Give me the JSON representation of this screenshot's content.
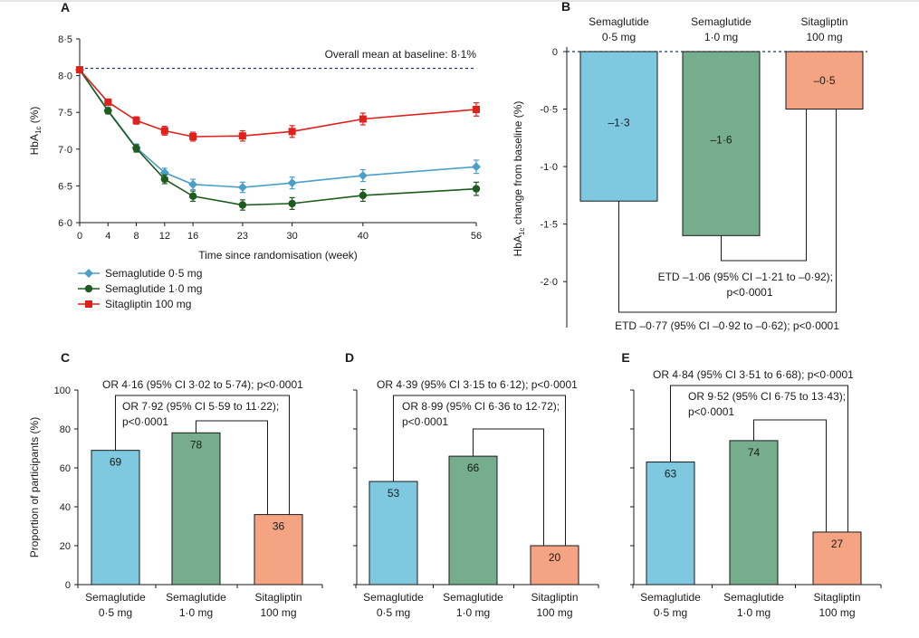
{
  "colors": {
    "sema05": "#7ec8e0",
    "sema10": "#76ad8c",
    "sita": "#f4a383",
    "line_sema05": "#4a9fc9",
    "line_sema10": "#1f5a1f",
    "line_sita": "#e0201b",
    "axis": "#1a1a1a",
    "baseline": "#1f3a6b"
  },
  "chart_data": [
    {
      "panel": "A",
      "type": "line",
      "ylabel_main": "HbA",
      "ylabel_sub": "1c",
      "ylabel_unit": " (%)",
      "xlabel": "Time since randomisation (week)",
      "annotation": "Overall mean at baseline: 8·1%",
      "baseline": 8.1,
      "x": [
        0,
        4,
        8,
        12,
        16,
        23,
        30,
        40,
        56
      ],
      "x_tick_labels": [
        "0",
        "4",
        "8",
        "12",
        "16",
        "23",
        "30",
        "40",
        "56"
      ],
      "ylim": [
        6.0,
        8.5
      ],
      "y_tick_labels": [
        "6·0",
        "6·5",
        "7·0",
        "7·5",
        "8·0",
        "8·5"
      ],
      "series": [
        {
          "name": "Semaglutide 0·5 mg",
          "color": "line_sema05",
          "marker": "diamond",
          "values": [
            8.08,
            7.53,
            7.02,
            6.68,
            6.52,
            6.48,
            6.54,
            6.64,
            6.76
          ],
          "err": [
            0.03,
            0.04,
            0.05,
            0.06,
            0.07,
            0.07,
            0.08,
            0.08,
            0.09
          ]
        },
        {
          "name": "Semaglutide 1·0 mg",
          "color": "line_sema10",
          "marker": "circle",
          "values": [
            8.08,
            7.52,
            7.01,
            6.59,
            6.36,
            6.24,
            6.26,
            6.37,
            6.46
          ],
          "err": [
            0.03,
            0.04,
            0.05,
            0.06,
            0.07,
            0.07,
            0.08,
            0.08,
            0.09
          ]
        },
        {
          "name": "Sitagliptin 100 mg",
          "color": "line_sita",
          "marker": "square",
          "values": [
            8.08,
            7.64,
            7.39,
            7.25,
            7.17,
            7.18,
            7.24,
            7.41,
            7.54
          ],
          "err": [
            0.03,
            0.04,
            0.05,
            0.06,
            0.06,
            0.07,
            0.08,
            0.08,
            0.09
          ]
        }
      ]
    },
    {
      "panel": "B",
      "type": "bar",
      "ylabel_main": "HbA",
      "ylabel_sub": "1c",
      "ylabel_rest": " change from baseline (%)",
      "categories": [
        [
          "Semaglutide",
          "0·5 mg"
        ],
        [
          "Semaglutide",
          "1·0 mg"
        ],
        [
          "Sitagliptin",
          "100 mg"
        ]
      ],
      "values": [
        -1.3,
        -1.6,
        -0.5
      ],
      "bar_labels": [
        "–1·3",
        "–1·6",
        "–0·5"
      ],
      "ylim": [
        -2.4,
        0
      ],
      "y_tick_labels": [
        "0",
        "-0·5",
        "-1·0",
        "-1·5",
        "-2·0"
      ],
      "etd_lines": [
        [
          "ETD –1·06 (95% CI –1·21 to –0·92);",
          "p<0·0001"
        ],
        [
          "ETD –0·77 (95% CI –0·92 to –0·62); p<0·0001"
        ]
      ]
    },
    {
      "panel": "C",
      "type": "bar",
      "ylabel": "Proportion of participants (%)",
      "categories": [
        [
          "Semaglutide",
          "0·5 mg"
        ],
        [
          "Semaglutide",
          "1·0 mg"
        ],
        [
          "Sitagliptin",
          "100 mg"
        ]
      ],
      "values": [
        69,
        78,
        36
      ],
      "bar_labels": [
        "69",
        "78",
        "36"
      ],
      "ylim": [
        0,
        100
      ],
      "y_tick_labels": [
        "0",
        "20",
        "40",
        "60",
        "80",
        "100"
      ],
      "or_outer": [
        "OR 4·16 (95% CI 3·02 to 5·74); p<0·0001"
      ],
      "or_inner": [
        "OR 7·92 (95% CI 5·59 to 11·22);",
        "p<0·0001"
      ]
    },
    {
      "panel": "D",
      "type": "bar",
      "categories": [
        [
          "Semaglutide",
          "0·5 mg"
        ],
        [
          "Semaglutide",
          "1·0 mg"
        ],
        [
          "Sitagliptin",
          "100 mg"
        ]
      ],
      "values": [
        53,
        66,
        20
      ],
      "bar_labels": [
        "53",
        "66",
        "20"
      ],
      "ylim": [
        0,
        100
      ],
      "or_outer": [
        "OR 4·39 (95% CI 3·15 to 6·12); p<0·0001"
      ],
      "or_inner": [
        "OR 8·99 (95% CI 6·36 to 12·72);",
        "p<0·0001"
      ]
    },
    {
      "panel": "E",
      "type": "bar",
      "categories": [
        [
          "Semaglutide",
          "0·5 mg"
        ],
        [
          "Semaglutide",
          "1·0 mg"
        ],
        [
          "Sitagliptin",
          "100 mg"
        ]
      ],
      "values": [
        63,
        74,
        27
      ],
      "bar_labels": [
        "63",
        "74",
        "27"
      ],
      "ylim": [
        0,
        100
      ],
      "or_outer": [
        "OR 4·84 (95% CI 3·51 to 6·68); p<0·0001"
      ],
      "or_inner": [
        "OR 9·52 (95% CI 6·75 to 13·43);",
        "p<0·0001"
      ]
    }
  ]
}
